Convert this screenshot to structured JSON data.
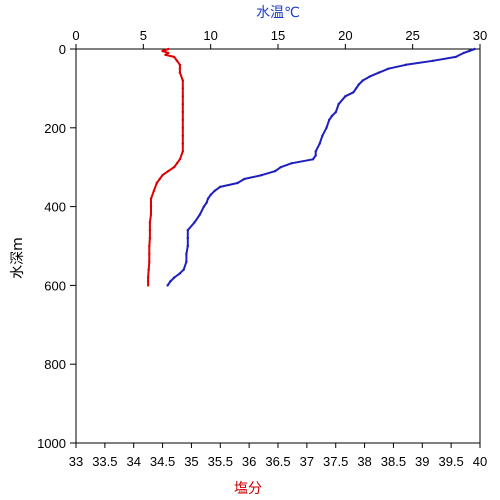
{
  "chart_data": {
    "type": "line",
    "title": "",
    "y_axis": {
      "label": "水深m",
      "range": [
        0,
        1000
      ],
      "inverted": true,
      "ticks": [
        0,
        200,
        400,
        600,
        800,
        1000
      ],
      "tick_labels": [
        "0",
        "200",
        "400",
        "600",
        "800",
        "1000"
      ]
    },
    "x_axis_top": {
      "label": "水温℃",
      "label_color": "#1f3fbf",
      "range": [
        0,
        30
      ],
      "ticks": [
        0,
        5,
        10,
        15,
        20,
        25,
        30
      ],
      "tick_labels": [
        "0",
        "5",
        "10",
        "15",
        "20",
        "25",
        "30"
      ]
    },
    "x_axis_bottom": {
      "label": "塩分",
      "label_color": "#cc0000",
      "range": [
        33,
        40
      ],
      "ticks": [
        33,
        33.5,
        34,
        34.5,
        35,
        35.5,
        36,
        36.5,
        37,
        37.5,
        38,
        38.5,
        39,
        39.5,
        40
      ],
      "tick_labels": [
        "33",
        "33.5",
        "34",
        "34.5",
        "35",
        "35.5",
        "36",
        "36.5",
        "37",
        "37.5",
        "38",
        "38.5",
        "39",
        "39.5",
        "40"
      ]
    },
    "grid": false,
    "series": [
      {
        "axis": "top",
        "color": "#1f1fbf",
        "depth": [
          0,
          5,
          10,
          20,
          30,
          40,
          50,
          60,
          70,
          80,
          90,
          100,
          110,
          120,
          140,
          160,
          170,
          180,
          200,
          220,
          240,
          260,
          270,
          280,
          290,
          300,
          310,
          320,
          330,
          340,
          350,
          360,
          370,
          380,
          390,
          400,
          420,
          440,
          460,
          480,
          500,
          520,
          540,
          560,
          570,
          580,
          590,
          600
        ],
        "values": [
          29.6,
          29.2,
          28.8,
          28.2,
          26.5,
          24.5,
          23.2,
          22.5,
          21.8,
          21.3,
          21.0,
          20.8,
          20.6,
          20.0,
          19.5,
          19.3,
          19.0,
          18.8,
          18.6,
          18.3,
          18.1,
          17.8,
          17.8,
          17.6,
          16.0,
          15.2,
          14.8,
          13.8,
          12.5,
          12.0,
          10.7,
          10.3,
          10.0,
          9.8,
          9.7,
          9.5,
          9.2,
          8.8,
          8.3,
          8.3,
          8.3,
          8.2,
          8.2,
          8.0,
          7.7,
          7.3,
          7.0,
          6.8
        ]
      },
      {
        "axis": "bottom",
        "color": "#dd0000",
        "depth": [
          0,
          5,
          10,
          15,
          20,
          30,
          40,
          50,
          60,
          80,
          100,
          120,
          140,
          160,
          180,
          200,
          220,
          240,
          260,
          280,
          290,
          300,
          310,
          320,
          330,
          340,
          360,
          380,
          400,
          420,
          440,
          460,
          480,
          500,
          520,
          540,
          560,
          580,
          590,
          600
        ],
        "values": [
          34.6,
          34.5,
          34.6,
          34.55,
          34.7,
          34.75,
          34.8,
          34.8,
          34.8,
          34.85,
          34.85,
          34.85,
          34.85,
          34.85,
          34.85,
          34.85,
          34.85,
          34.85,
          34.85,
          34.8,
          34.75,
          34.7,
          34.6,
          34.5,
          34.45,
          34.4,
          34.35,
          34.3,
          34.3,
          34.3,
          34.28,
          34.28,
          34.28,
          34.27,
          34.27,
          34.27,
          34.26,
          34.25,
          34.25,
          34.25
        ]
      }
    ]
  }
}
